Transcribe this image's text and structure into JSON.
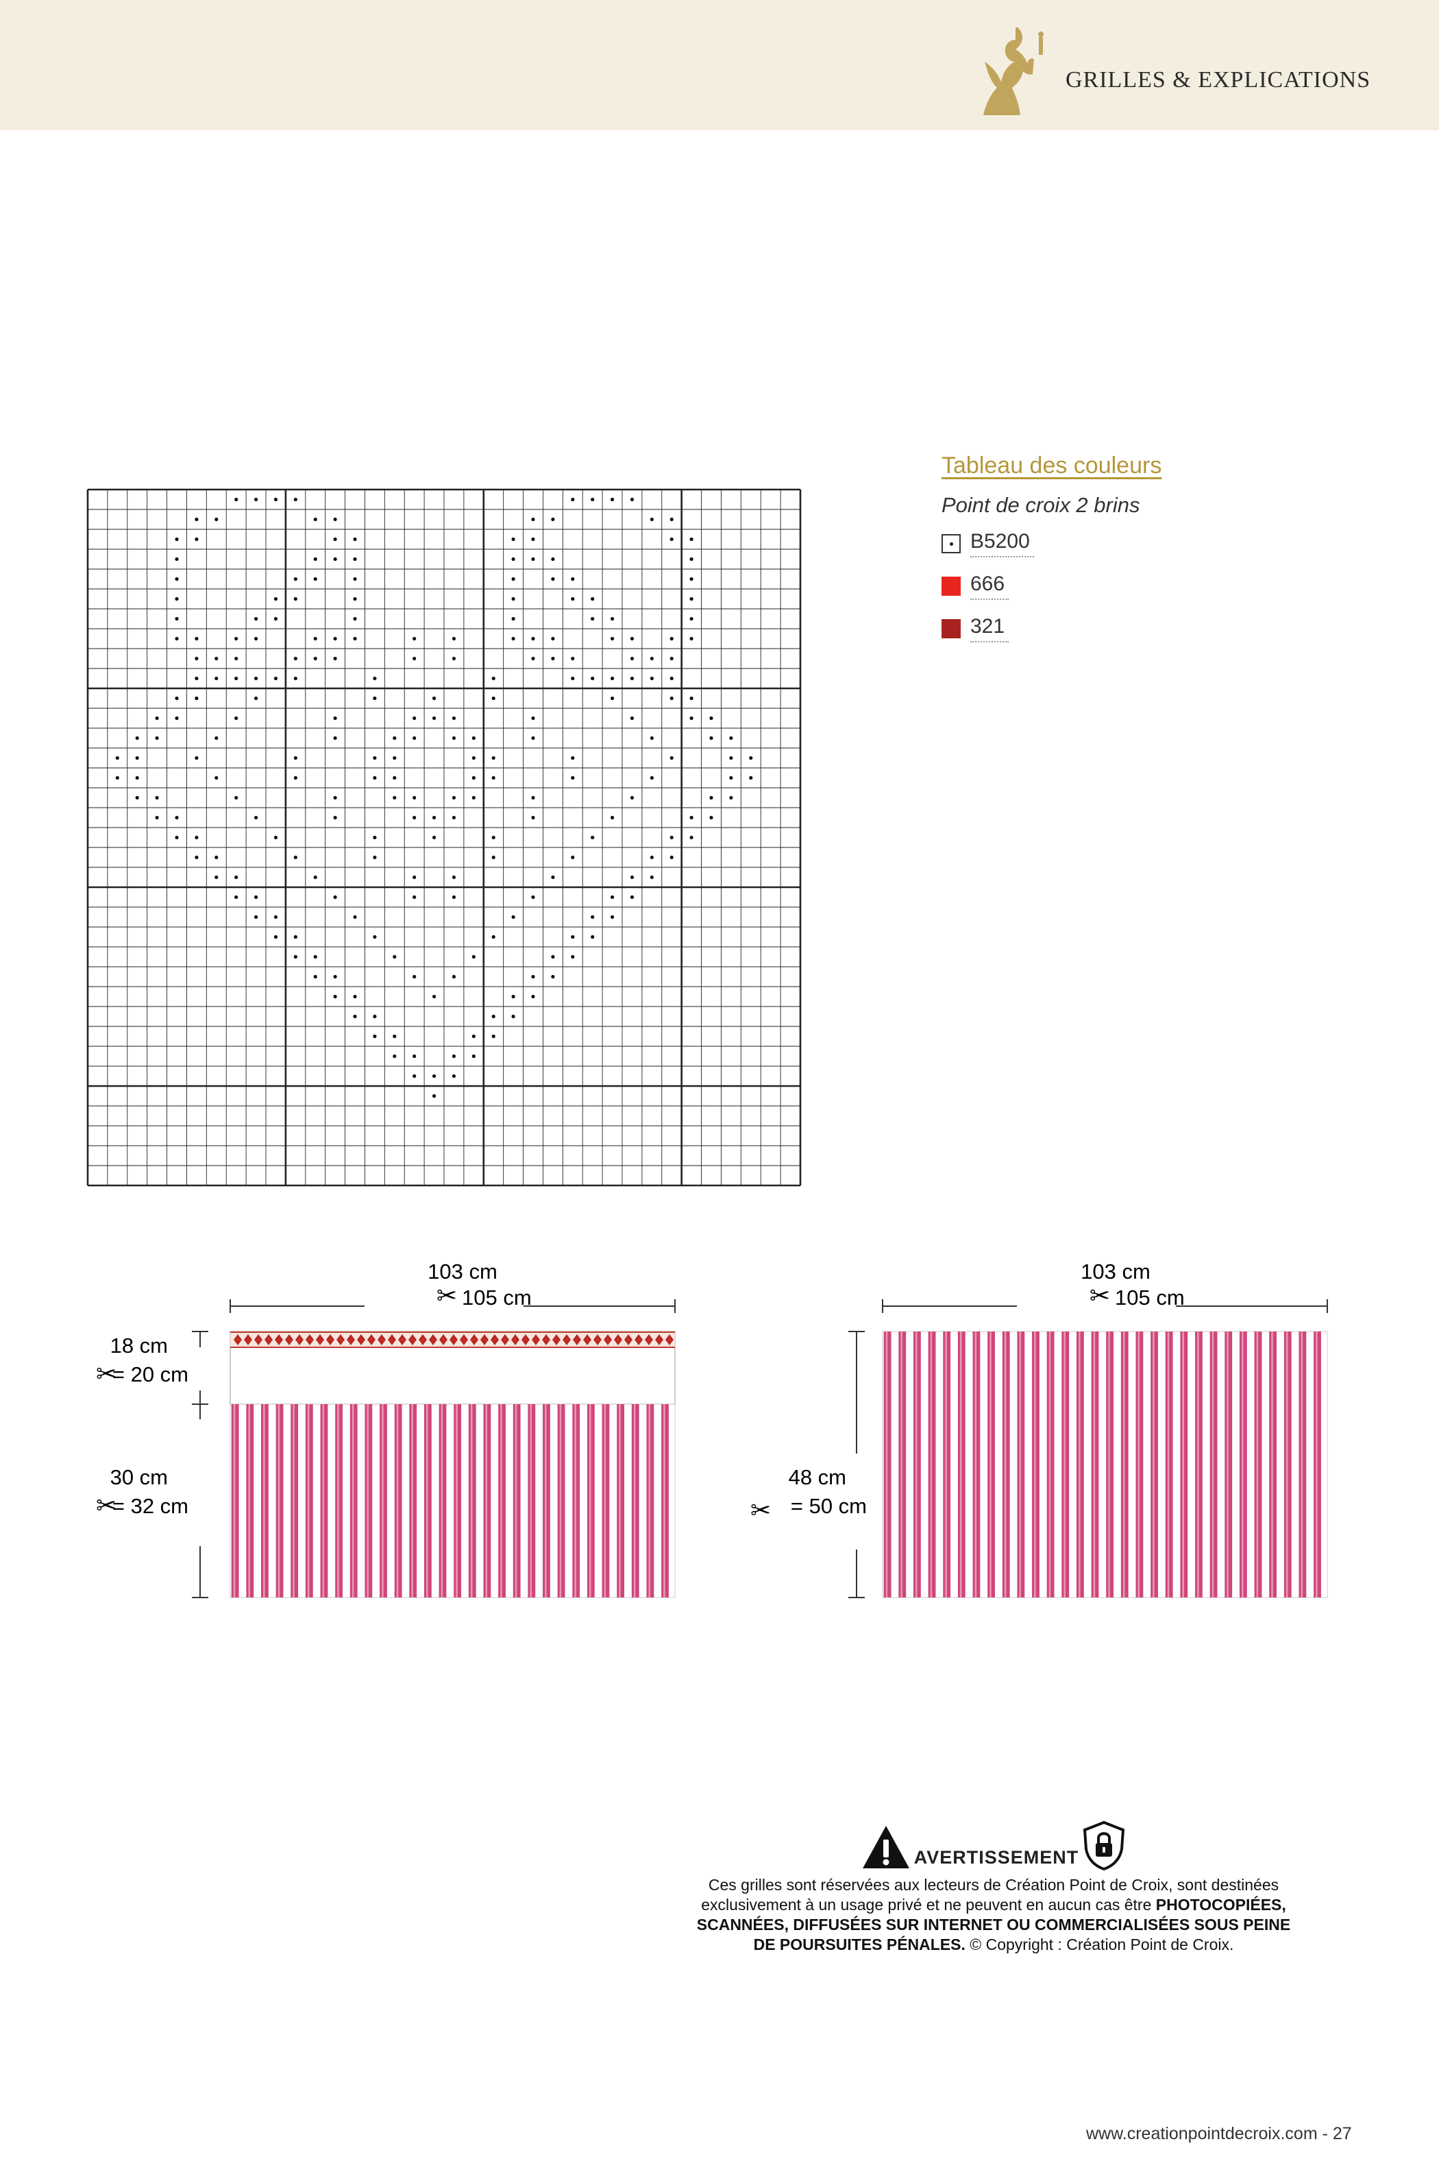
{
  "header": {
    "title": "GRILLES & EXPLICATIONS",
    "band_color": "#f4eee0",
    "angel_color": "#c2a55c"
  },
  "legend": {
    "title": "Tableau des couleurs",
    "subtitle": "Point de croix 2 brins",
    "items": [
      {
        "code": "B5200",
        "type": "symbol",
        "color": "#ffffff"
      },
      {
        "code": "666",
        "type": "fill",
        "color": "#e8261e"
      },
      {
        "code": "321",
        "type": "fill",
        "color": "#a8231f"
      }
    ]
  },
  "grid": {
    "cols": 36,
    "rows": 35,
    "major_every": 10,
    "stitches_note": "dot pattern of B5200 stitches"
  },
  "diagram_left": {
    "width_label": "103 cm",
    "width_cut_label": "105 cm",
    "top_height_label": "18 cm",
    "top_cut_label": "= 20 cm",
    "bottom_height_label": "30 cm",
    "bottom_cut_label": "= 32 cm"
  },
  "diagram_right": {
    "width_label": "103 cm",
    "width_cut_label": "105 cm",
    "height_label": "48 cm",
    "height_cut_label": "= 50 cm"
  },
  "stripe_colors": {
    "pink": "#d0457a",
    "light": "#f7dbe6"
  },
  "warning": {
    "title": "AVERTISSEMENT",
    "line1": "Ces grilles sont réservées aux lecteurs de Création Point de Croix, sont destinées",
    "line2a": "exclusivement à un usage privé et ne peuvent en aucun cas être ",
    "line2b": "PHOTOCOPIÉES,",
    "line3": "SCANNÉES, DIFFUSÉES SUR INTERNET OU COMMERCIALISÉES SOUS PEINE",
    "line4a": "DE POURSUITES PÉNALES.",
    "line4b": " © Copyright : Création Point de Croix."
  },
  "footer": {
    "text": "www.creationpointdecroix.com - 27"
  }
}
